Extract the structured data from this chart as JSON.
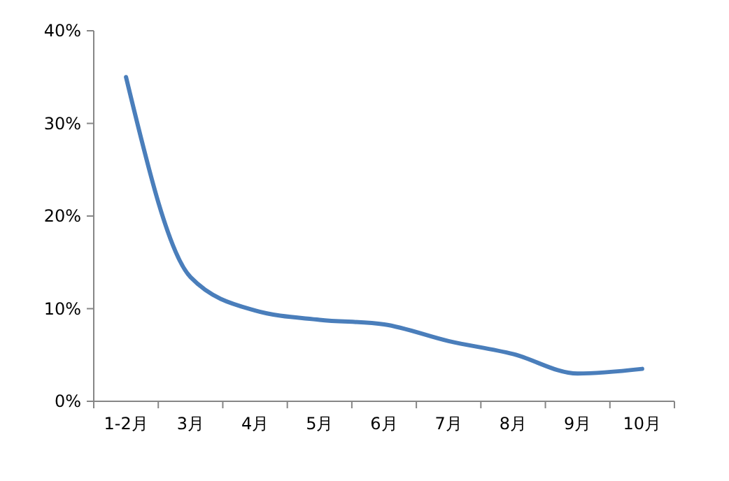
{
  "chart_data": {
    "type": "line",
    "categories": [
      "1-2月",
      "3月",
      "4月",
      "5月",
      "6月",
      "7月",
      "8月",
      "9月",
      "10月"
    ],
    "series": [
      {
        "color": "#4a7ebb",
        "values": [
          35,
          13.4,
          9.8,
          8.8,
          8.3,
          6.5,
          5.1,
          3.0,
          3.5
        ]
      }
    ],
    "ylim": [
      0,
      40
    ],
    "yticks": [
      {
        "value": 0,
        "label": "0%"
      },
      {
        "value": 10,
        "label": "10%"
      },
      {
        "value": 20,
        "label": "20%"
      },
      {
        "value": 30,
        "label": "30%"
      },
      {
        "value": 40,
        "label": "40%"
      }
    ],
    "grid": false,
    "marker": "none",
    "line_style": "solid"
  }
}
